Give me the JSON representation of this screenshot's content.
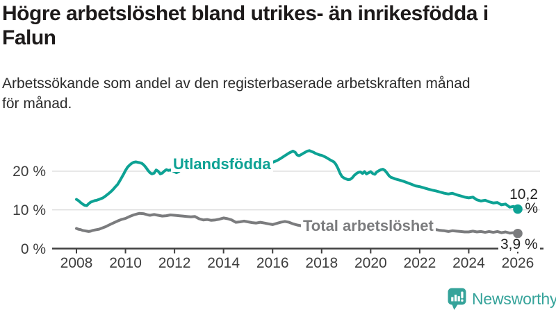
{
  "header": {
    "title": "Högre arbetslöshet bland utrikes- än inrikesfödda i\nFalun",
    "subtitle": "Arbetssökande som andel av den registerbaserade arbetskraften månad\nför månad."
  },
  "footer": {
    "brand": "Newsworthy"
  },
  "colors": {
    "teal_line": "#0da294",
    "gray_line": "#7b7c7e",
    "axis": "#404040",
    "grid": "#dcdcdc",
    "logo_teal": "#35a39a"
  },
  "chart_data": {
    "type": "line",
    "title": "Högre arbetslöshet bland utrikes- än inrikesfödda i Falun",
    "xlabel": "",
    "ylabel": "",
    "grid": "horizontal",
    "legend_position": "inline-labels",
    "x_axis": {
      "ticks": [
        2008,
        2010,
        2012,
        2014,
        2016,
        2018,
        2020,
        2022,
        2024,
        2026
      ],
      "range": [
        2008,
        2026.3
      ]
    },
    "y_axis": {
      "unit": "%",
      "range": [
        0,
        27
      ],
      "ticks": [
        {
          "value": 0,
          "label": "0 %"
        },
        {
          "value": 10,
          "label": "10 %"
        },
        {
          "value": 20,
          "label": "20 %"
        }
      ]
    },
    "series": [
      {
        "name": "Utlandsfödda",
        "color": "#0da294",
        "end_label": "10,2 %",
        "end_value": 10.2,
        "points": [
          [
            2008.0,
            12.7
          ],
          [
            2008.08,
            12.4
          ],
          [
            2008.17,
            11.9
          ],
          [
            2008.25,
            11.5
          ],
          [
            2008.33,
            11.2
          ],
          [
            2008.42,
            11.1
          ],
          [
            2008.5,
            11.6
          ],
          [
            2008.58,
            12.0
          ],
          [
            2008.67,
            12.2
          ],
          [
            2008.75,
            12.4
          ],
          [
            2008.83,
            12.5
          ],
          [
            2008.92,
            12.7
          ],
          [
            2009.0,
            12.9
          ],
          [
            2009.08,
            13.1
          ],
          [
            2009.17,
            13.5
          ],
          [
            2009.25,
            13.9
          ],
          [
            2009.33,
            14.3
          ],
          [
            2009.42,
            14.8
          ],
          [
            2009.5,
            15.3
          ],
          [
            2009.58,
            15.9
          ],
          [
            2009.67,
            16.5
          ],
          [
            2009.75,
            17.3
          ],
          [
            2009.83,
            18.2
          ],
          [
            2009.92,
            19.2
          ],
          [
            2010.0,
            20.2
          ],
          [
            2010.08,
            21.0
          ],
          [
            2010.17,
            21.6
          ],
          [
            2010.25,
            22.0
          ],
          [
            2010.33,
            22.3
          ],
          [
            2010.42,
            22.4
          ],
          [
            2010.5,
            22.3
          ],
          [
            2010.58,
            22.2
          ],
          [
            2010.67,
            22.0
          ],
          [
            2010.75,
            21.6
          ],
          [
            2010.83,
            21.0
          ],
          [
            2010.92,
            20.2
          ],
          [
            2011.0,
            19.6
          ],
          [
            2011.08,
            19.3
          ],
          [
            2011.17,
            19.5
          ],
          [
            2011.25,
            20.3
          ],
          [
            2011.33,
            20.0
          ],
          [
            2011.42,
            19.3
          ],
          [
            2011.5,
            19.5
          ],
          [
            2011.58,
            20.0
          ],
          [
            2011.67,
            20.4
          ],
          [
            2011.75,
            20.2
          ],
          [
            2011.83,
            20.3
          ],
          [
            2011.92,
            20.1
          ],
          [
            2012.0,
            19.9
          ],
          [
            2012.08,
            19.6
          ],
          [
            2012.17,
            19.9
          ],
          [
            2012.25,
            20.3
          ],
          [
            2012.42,
            20.2
          ],
          [
            2012.58,
            20.4
          ],
          [
            2012.75,
            20.5
          ],
          [
            2012.92,
            20.7
          ],
          [
            2013.08,
            20.8
          ],
          [
            2013.25,
            21.0
          ],
          [
            2013.42,
            20.9
          ],
          [
            2013.58,
            21.1
          ],
          [
            2013.75,
            21.0
          ],
          [
            2013.92,
            21.2
          ],
          [
            2014.08,
            21.1
          ],
          [
            2014.25,
            21.3
          ],
          [
            2014.42,
            21.2
          ],
          [
            2014.58,
            21.3
          ],
          [
            2014.75,
            21.4
          ],
          [
            2014.92,
            21.5
          ],
          [
            2015.08,
            21.4
          ],
          [
            2015.25,
            21.6
          ],
          [
            2015.42,
            21.5
          ],
          [
            2015.58,
            21.7
          ],
          [
            2015.75,
            21.9
          ],
          [
            2015.92,
            22.1
          ],
          [
            2016.0,
            22.3
          ],
          [
            2016.17,
            22.7
          ],
          [
            2016.33,
            23.3
          ],
          [
            2016.5,
            24.0
          ],
          [
            2016.67,
            24.7
          ],
          [
            2016.83,
            25.2
          ],
          [
            2016.92,
            24.9
          ],
          [
            2017.0,
            24.2
          ],
          [
            2017.08,
            24.0
          ],
          [
            2017.17,
            24.3
          ],
          [
            2017.25,
            24.6
          ],
          [
            2017.33,
            24.9
          ],
          [
            2017.42,
            25.2
          ],
          [
            2017.5,
            25.3
          ],
          [
            2017.58,
            25.1
          ],
          [
            2017.67,
            24.9
          ],
          [
            2017.75,
            24.6
          ],
          [
            2017.83,
            24.4
          ],
          [
            2017.92,
            24.2
          ],
          [
            2018.0,
            24.1
          ],
          [
            2018.17,
            23.6
          ],
          [
            2018.33,
            23.0
          ],
          [
            2018.5,
            22.4
          ],
          [
            2018.58,
            21.8
          ],
          [
            2018.67,
            20.7
          ],
          [
            2018.75,
            19.5
          ],
          [
            2018.83,
            18.6
          ],
          [
            2018.92,
            18.2
          ],
          [
            2019.0,
            18.0
          ],
          [
            2019.08,
            17.8
          ],
          [
            2019.17,
            17.9
          ],
          [
            2019.25,
            18.3
          ],
          [
            2019.33,
            18.9
          ],
          [
            2019.42,
            19.4
          ],
          [
            2019.5,
            19.7
          ],
          [
            2019.58,
            19.8
          ],
          [
            2019.67,
            19.4
          ],
          [
            2019.75,
            19.9
          ],
          [
            2019.83,
            19.3
          ],
          [
            2019.92,
            19.6
          ],
          [
            2020.0,
            19.9
          ],
          [
            2020.08,
            19.4
          ],
          [
            2020.17,
            19.2
          ],
          [
            2020.25,
            19.8
          ],
          [
            2020.33,
            20.1
          ],
          [
            2020.42,
            20.4
          ],
          [
            2020.5,
            20.5
          ],
          [
            2020.58,
            20.2
          ],
          [
            2020.67,
            19.5
          ],
          [
            2020.75,
            18.8
          ],
          [
            2020.83,
            18.4
          ],
          [
            2020.92,
            18.2
          ],
          [
            2021.0,
            18.0
          ],
          [
            2021.17,
            17.7
          ],
          [
            2021.33,
            17.4
          ],
          [
            2021.5,
            17.0
          ],
          [
            2021.67,
            16.6
          ],
          [
            2021.83,
            16.2
          ],
          [
            2022.0,
            16.0
          ],
          [
            2022.17,
            15.7
          ],
          [
            2022.33,
            15.4
          ],
          [
            2022.5,
            15.1
          ],
          [
            2022.67,
            14.9
          ],
          [
            2022.83,
            14.6
          ],
          [
            2023.0,
            14.3
          ],
          [
            2023.17,
            14.1
          ],
          [
            2023.33,
            14.3
          ],
          [
            2023.5,
            13.9
          ],
          [
            2023.67,
            13.6
          ],
          [
            2023.83,
            13.3
          ],
          [
            2024.0,
            13.1
          ],
          [
            2024.17,
            13.3
          ],
          [
            2024.33,
            12.6
          ],
          [
            2024.5,
            12.3
          ],
          [
            2024.67,
            12.5
          ],
          [
            2024.83,
            12.1
          ],
          [
            2025.0,
            11.8
          ],
          [
            2025.17,
            11.9
          ],
          [
            2025.33,
            11.3
          ],
          [
            2025.5,
            11.5
          ],
          [
            2025.67,
            10.7
          ],
          [
            2025.83,
            10.9
          ],
          [
            2026.0,
            10.2
          ]
        ]
      },
      {
        "name": "Total arbetslöshet",
        "color": "#7b7c7e",
        "end_label": "3,9 %",
        "end_value": 3.9,
        "points": [
          [
            2008.0,
            5.2
          ],
          [
            2008.08,
            5.0
          ],
          [
            2008.17,
            4.9
          ],
          [
            2008.25,
            4.7
          ],
          [
            2008.33,
            4.6
          ],
          [
            2008.42,
            4.5
          ],
          [
            2008.5,
            4.4
          ],
          [
            2008.58,
            4.5
          ],
          [
            2008.67,
            4.7
          ],
          [
            2008.75,
            4.8
          ],
          [
            2008.83,
            4.9
          ],
          [
            2008.92,
            5.0
          ],
          [
            2009.0,
            5.2
          ],
          [
            2009.17,
            5.6
          ],
          [
            2009.33,
            6.1
          ],
          [
            2009.5,
            6.6
          ],
          [
            2009.67,
            7.1
          ],
          [
            2009.83,
            7.5
          ],
          [
            2010.0,
            7.8
          ],
          [
            2010.17,
            8.3
          ],
          [
            2010.33,
            8.7
          ],
          [
            2010.5,
            9.0
          ],
          [
            2010.58,
            9.1
          ],
          [
            2010.75,
            9.0
          ],
          [
            2010.92,
            8.7
          ],
          [
            2011.0,
            8.6
          ],
          [
            2011.17,
            8.8
          ],
          [
            2011.33,
            8.6
          ],
          [
            2011.5,
            8.4
          ],
          [
            2011.67,
            8.5
          ],
          [
            2011.83,
            8.7
          ],
          [
            2012.0,
            8.6
          ],
          [
            2012.17,
            8.5
          ],
          [
            2012.33,
            8.4
          ],
          [
            2012.5,
            8.3
          ],
          [
            2012.67,
            8.2
          ],
          [
            2012.83,
            8.3
          ],
          [
            2013.0,
            7.7
          ],
          [
            2013.17,
            7.4
          ],
          [
            2013.33,
            7.5
          ],
          [
            2013.5,
            7.3
          ],
          [
            2013.67,
            7.4
          ],
          [
            2013.83,
            7.6
          ],
          [
            2014.0,
            7.9
          ],
          [
            2014.17,
            7.7
          ],
          [
            2014.33,
            7.4
          ],
          [
            2014.5,
            6.8
          ],
          [
            2014.67,
            6.9
          ],
          [
            2014.83,
            7.1
          ],
          [
            2015.0,
            6.9
          ],
          [
            2015.17,
            6.7
          ],
          [
            2015.33,
            6.6
          ],
          [
            2015.5,
            6.8
          ],
          [
            2015.67,
            6.6
          ],
          [
            2015.83,
            6.4
          ],
          [
            2016.0,
            6.2
          ],
          [
            2016.17,
            6.5
          ],
          [
            2016.33,
            6.8
          ],
          [
            2016.5,
            7.0
          ],
          [
            2016.67,
            6.8
          ],
          [
            2016.83,
            6.4
          ],
          [
            2017.0,
            6.1
          ],
          [
            2017.17,
            5.9
          ],
          [
            2017.33,
            5.8
          ],
          [
            2017.5,
            5.9
          ],
          [
            2017.67,
            5.8
          ],
          [
            2017.83,
            5.7
          ],
          [
            2018.0,
            5.6
          ],
          [
            2018.25,
            5.5
          ],
          [
            2018.5,
            5.4
          ],
          [
            2018.75,
            5.3
          ],
          [
            2019.0,
            5.4
          ],
          [
            2019.25,
            5.5
          ],
          [
            2019.5,
            5.6
          ],
          [
            2019.75,
            5.7
          ],
          [
            2020.0,
            5.8
          ],
          [
            2020.25,
            6.5
          ],
          [
            2020.5,
            7.0
          ],
          [
            2020.75,
            6.8
          ],
          [
            2021.0,
            6.5
          ],
          [
            2021.25,
            6.2
          ],
          [
            2021.5,
            5.9
          ],
          [
            2021.75,
            5.6
          ],
          [
            2022.0,
            5.4
          ],
          [
            2022.25,
            5.2
          ],
          [
            2022.5,
            5.0
          ],
          [
            2022.67,
            4.9
          ],
          [
            2022.83,
            4.7
          ],
          [
            2023.0,
            4.6
          ],
          [
            2023.17,
            4.4
          ],
          [
            2023.33,
            4.6
          ],
          [
            2023.5,
            4.5
          ],
          [
            2023.67,
            4.4
          ],
          [
            2023.83,
            4.3
          ],
          [
            2024.0,
            4.3
          ],
          [
            2024.17,
            4.5
          ],
          [
            2024.33,
            4.3
          ],
          [
            2024.5,
            4.4
          ],
          [
            2024.67,
            4.2
          ],
          [
            2024.83,
            4.4
          ],
          [
            2025.0,
            4.2
          ],
          [
            2025.17,
            4.4
          ],
          [
            2025.33,
            4.1
          ],
          [
            2025.5,
            4.3
          ],
          [
            2025.67,
            4.0
          ],
          [
            2025.83,
            4.1
          ],
          [
            2026.0,
            3.9
          ]
        ]
      }
    ]
  }
}
